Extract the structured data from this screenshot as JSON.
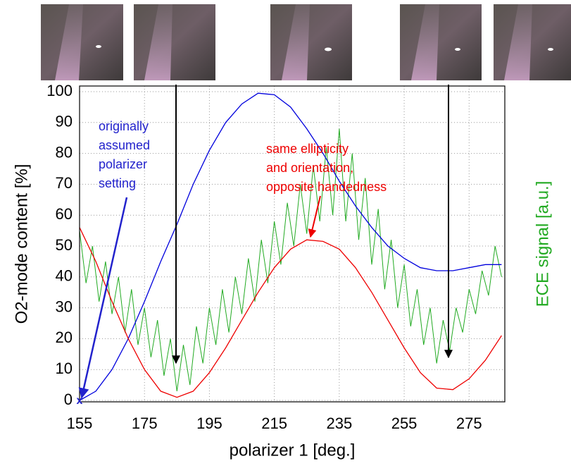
{
  "chart_data": {
    "type": "line",
    "xlabel": "polarizer 1 [deg.]",
    "ylabel": "O2-mode content [%]",
    "y2label": "ECE signal [a.u.]",
    "xlim": [
      155,
      286
    ],
    "ylim": [
      0,
      100
    ],
    "xticks": [
      155,
      175,
      195,
      215,
      235,
      255,
      275
    ],
    "yticks": [
      0,
      10,
      20,
      30,
      40,
      50,
      60,
      70,
      80,
      90,
      100
    ],
    "grid": true,
    "x": [
      155,
      160,
      165,
      170,
      175,
      180,
      185,
      190,
      195,
      200,
      205,
      210,
      215,
      220,
      225,
      230,
      235,
      240,
      245,
      250,
      255,
      260,
      265,
      270,
      275,
      280,
      285
    ],
    "series": [
      {
        "color": "#0000dd",
        "values": [
          0,
          3,
          10,
          20,
          32,
          45,
          57,
          70,
          81,
          90,
          96,
          99.5,
          99,
          95,
          88,
          80,
          71,
          63,
          56,
          50,
          46,
          43,
          42,
          42,
          43,
          44,
          44
        ]
      },
      {
        "color": "#ee0000",
        "values": [
          56,
          45,
          32,
          20,
          10,
          3,
          1,
          3,
          9,
          17,
          26,
          35,
          43,
          49,
          52,
          51.5,
          49,
          43,
          35,
          26,
          17,
          9,
          4,
          3.5,
          7,
          13,
          21
        ]
      },
      {
        "color": "#22aa22",
        "x": [
          155,
          157,
          159,
          161,
          163,
          165,
          167,
          169,
          171,
          173,
          175,
          177,
          179,
          181,
          183,
          185,
          187,
          189,
          191,
          193,
          195,
          197,
          199,
          201,
          203,
          205,
          207,
          209,
          211,
          213,
          215,
          217,
          219,
          221,
          223,
          225,
          227,
          229,
          231,
          233,
          235,
          237,
          239,
          241,
          243,
          245,
          247,
          249,
          251,
          253,
          255,
          257,
          259,
          261,
          263,
          265,
          267,
          269,
          271,
          273,
          275,
          277,
          279,
          281,
          283,
          285
        ],
        "values": [
          55,
          38,
          50,
          32,
          45,
          28,
          40,
          22,
          36,
          18,
          30,
          14,
          26,
          8,
          20,
          3,
          18,
          5,
          24,
          12,
          30,
          18,
          36,
          22,
          40,
          28,
          46,
          32,
          52,
          38,
          58,
          44,
          64,
          50,
          70,
          54,
          76,
          58,
          82,
          60,
          88,
          58,
          80,
          52,
          72,
          44,
          62,
          36,
          52,
          30,
          44,
          24,
          36,
          18,
          30,
          12,
          26,
          16,
          30,
          22,
          36,
          28,
          42,
          34,
          50,
          40
        ]
      }
    ],
    "annotations": [
      {
        "color": "#2222cc",
        "lines": [
          "originally",
          "assumed",
          "polarizer",
          "setting"
        ]
      },
      {
        "color": "#ee0000",
        "lines": [
          "same ellipticity",
          "and orientation,",
          "opposite handedness"
        ]
      }
    ]
  }
}
